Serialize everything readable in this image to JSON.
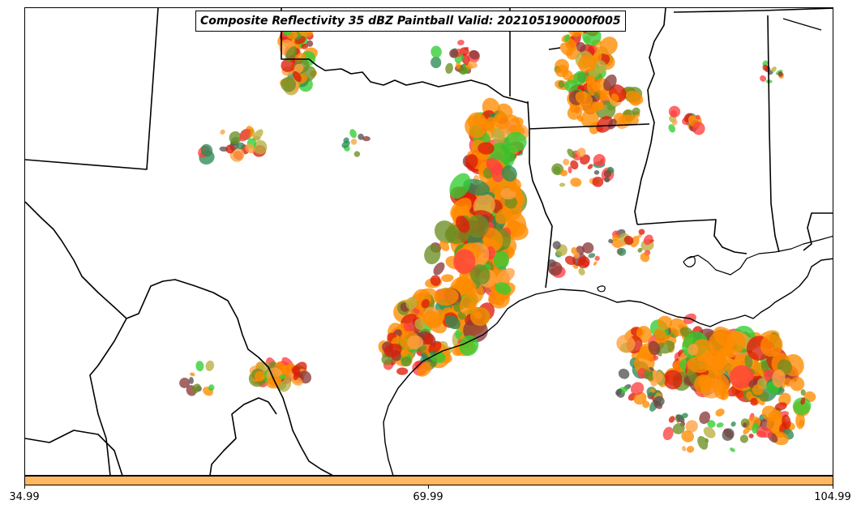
{
  "title": "Composite Reflectivity 35 dBZ Paintball Valid: 202105190000f005",
  "colorbar": {
    "color": "#fdb863",
    "ticks": [
      "34.99",
      "69.99",
      "104.99"
    ]
  },
  "colors": {
    "boundary": "#000000",
    "members": [
      "#ff8c00",
      "#dc1e0a",
      "#ff4040",
      "#8b3a3a",
      "#6b8e23",
      "#32cd32",
      "#2e8b57",
      "#ffa040",
      "#b8b040",
      "#555555"
    ]
  },
  "map": {
    "features": [
      "state-boundaries",
      "country-border",
      "coastline",
      "reflectivity-paintball-blobs"
    ],
    "regions": [
      "Texas",
      "Louisiana",
      "Oklahoma",
      "Arkansas",
      "Mississippi",
      "Mexico",
      "Gulf of Mexico"
    ]
  }
}
